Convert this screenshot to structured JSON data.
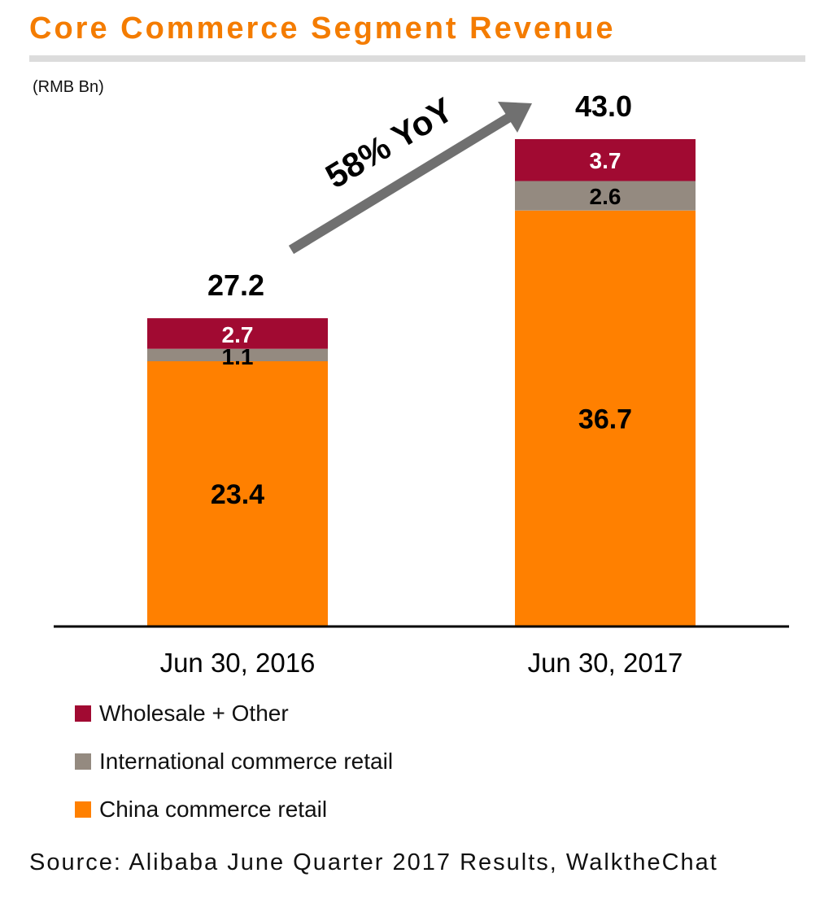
{
  "colors": {
    "title": "#f47c00",
    "title_rule": "#dcdcdc",
    "china": "#ff8000",
    "international": "#948a80",
    "wholesale": "#a10a32",
    "arrow": "#707070",
    "axis": "#000000"
  },
  "header": {
    "title": "Core Commerce Segment Revenue",
    "unit": "(RMB Bn)"
  },
  "chart_data": {
    "type": "bar",
    "stacked": true,
    "categories": [
      "Jun 30, 2016",
      "Jun 30, 2017"
    ],
    "series": [
      {
        "name": "China commerce retail",
        "values": [
          23.4,
          36.7
        ],
        "color": "#ff8000",
        "label_color": "#000000"
      },
      {
        "name": "International commerce retail",
        "values": [
          1.1,
          2.6
        ],
        "color": "#948a80",
        "label_color": "#000000"
      },
      {
        "name": "Wholesale + Other",
        "values": [
          2.7,
          3.7
        ],
        "color": "#a10a32",
        "label_color": "#ffffff"
      }
    ],
    "value_labels": [
      [
        "23.4",
        "36.7"
      ],
      [
        "1.1",
        "2.6"
      ],
      [
        "2.7",
        "3.7"
      ]
    ],
    "totals": [
      27.2,
      43.0
    ],
    "total_labels": [
      "27.2",
      "43.0"
    ],
    "annotation": "58% YoY",
    "ylim": [
      0,
      46
    ],
    "grid": false,
    "legend_position": "bottom-left"
  },
  "legend": {
    "items": [
      {
        "label": "Wholesale + Other",
        "color": "#a10a32"
      },
      {
        "label": "International commerce retail",
        "color": "#948a80"
      },
      {
        "label": "China commerce retail",
        "color": "#ff8000"
      }
    ]
  },
  "footer": {
    "source": "Source: Alibaba June Quarter 2017 Results, WalktheChat"
  }
}
